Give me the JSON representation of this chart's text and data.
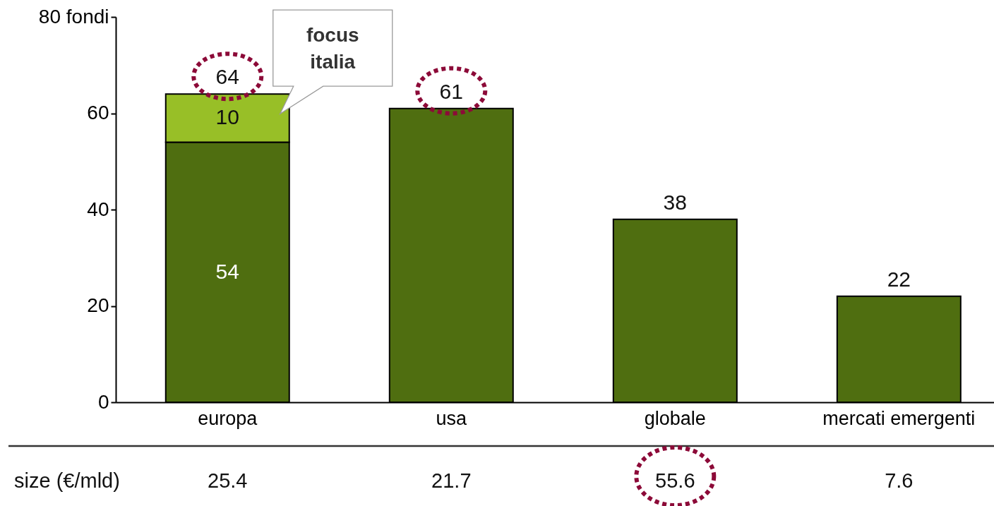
{
  "chart_data": {
    "type": "bar",
    "stacked": true,
    "categories": [
      "europa",
      "usa",
      "globale",
      "mercati emergenti"
    ],
    "series": [
      {
        "color": "#4f6e10",
        "values": [
          54,
          61,
          38,
          22
        ],
        "value_labels": [
          "54",
          null,
          null,
          null
        ]
      },
      {
        "color": "#98bf27",
        "values": [
          10,
          null,
          null,
          null
        ],
        "value_labels": [
          "10",
          null,
          null,
          null
        ]
      }
    ],
    "totals": [
      "64",
      "61",
      "38",
      "22"
    ],
    "ylim": [
      0,
      80
    ],
    "yticks": [
      0,
      20,
      40,
      60,
      {
        "value": 80,
        "label": "80 fondi"
      }
    ],
    "annotations": [
      "focus italia",
      "size (€/mld)",
      "25.4",
      "21.7",
      "55.6",
      "7.6"
    ]
  }
}
